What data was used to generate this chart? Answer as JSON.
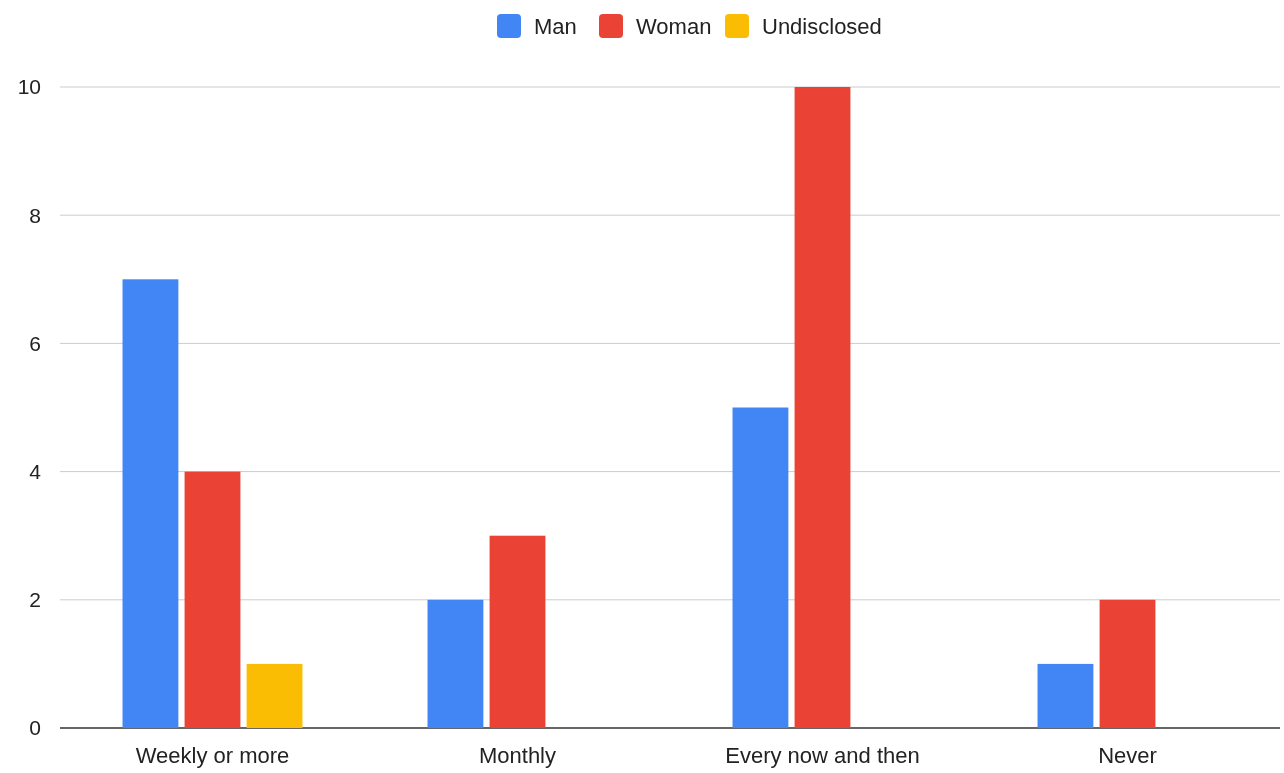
{
  "chart_data": {
    "type": "bar",
    "categories": [
      "Weekly or more",
      "Monthly",
      "Every now and then",
      "Never"
    ],
    "series": [
      {
        "name": "Man",
        "color": "#4285f4",
        "values": [
          7,
          2,
          5,
          1
        ]
      },
      {
        "name": "Woman",
        "color": "#ea4335",
        "values": [
          4,
          3,
          10,
          2
        ]
      },
      {
        "name": "Undisclosed",
        "color": "#fbbc04",
        "values": [
          1,
          0,
          0,
          0
        ]
      }
    ],
    "ylim": [
      0,
      10
    ],
    "yticks": [
      0,
      2,
      4,
      6,
      8,
      10
    ],
    "grid": "y",
    "legend": "top"
  }
}
